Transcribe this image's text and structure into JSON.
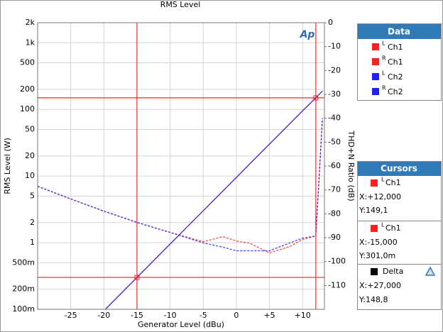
{
  "chart_data": {
    "type": "line",
    "title": "RMS Level",
    "logo": "Ap",
    "x_label": "Generator Level (dBu)",
    "y_label": "RMS Level (W)",
    "y2_label": "THD+N Ratio (dB)",
    "xlim": [
      -30,
      13.3
    ],
    "ylim": [
      0.1,
      2000
    ],
    "y2lim": [
      -120,
      0
    ],
    "log_y": true,
    "grid": true,
    "xticks": [
      {
        "value": -25,
        "label": "-25"
      },
      {
        "value": -20,
        "label": "-20"
      },
      {
        "value": -15,
        "label": "-15"
      },
      {
        "value": -10,
        "label": "-10"
      },
      {
        "value": -5,
        "label": "-5"
      },
      0,
      {
        "value": 5,
        "label": "+5"
      },
      {
        "value": 10,
        "label": "+10"
      }
    ],
    "yticks": [
      {
        "value": 0.1,
        "label": "100m"
      },
      {
        "value": 0.2,
        "label": "200m"
      },
      {
        "value": 0.5,
        "label": "500m"
      },
      1,
      2,
      5,
      10,
      20,
      50,
      100,
      200,
      500,
      {
        "value": 1000,
        "label": "1k"
      },
      {
        "value": 2000,
        "label": "2k"
      }
    ],
    "y2ticks": [
      0,
      -10,
      -20,
      -30,
      -40,
      -50,
      -60,
      -70,
      -80,
      -90,
      -100,
      -110
    ],
    "x": [
      -30,
      -25,
      -20,
      -15,
      -10,
      -5,
      -2,
      0,
      2,
      5,
      8,
      10,
      12,
      13
    ],
    "series": [
      {
        "name": "Ch1",
        "channel": "L",
        "color": "#ff2020",
        "values": [
          null,
          null,
          0.095,
          0.301,
          0.952,
          3.01,
          6.0,
          9.52,
          15.1,
          30.1,
          60.0,
          95.2,
          149.1,
          189
        ],
        "thd_values": [
          -68.5,
          -73.8,
          -78.9,
          -83.6,
          -87.8,
          -91.7,
          -89.6,
          -91.4,
          -92.3,
          -96.4,
          -93.8,
          -90.8,
          -89.3,
          -40
        ]
      },
      {
        "name": "Ch1",
        "channel": "R",
        "color": "#ff2020",
        "values": [
          null,
          null,
          0.095,
          0.301,
          0.952,
          3.01,
          6.0,
          9.52,
          15.1,
          30.1,
          60.0,
          95.2,
          149.1,
          189
        ],
        "thd_values": [
          -68.5,
          -73.8,
          -78.9,
          -83.6,
          -87.8,
          -91.7,
          -89.6,
          -91.4,
          -92.3,
          -96.4,
          -93.8,
          -90.8,
          -89.3,
          -40
        ]
      },
      {
        "name": "Ch2",
        "channel": "L",
        "color": "#2020ff",
        "values": [
          null,
          null,
          0.095,
          0.301,
          0.952,
          3.01,
          6.0,
          9.52,
          15.1,
          30.1,
          60.0,
          95.2,
          149.1,
          189
        ],
        "thd_values": [
          -68.5,
          -73.8,
          -78.9,
          -83.6,
          -87.8,
          -92.2,
          -94.0,
          -95.5,
          -95.5,
          -95.5,
          -92.3,
          -90.2,
          -89.3,
          -40
        ]
      },
      {
        "name": "Ch2",
        "channel": "R",
        "color": "#2020ff",
        "values": [
          null,
          null,
          0.095,
          0.301,
          0.952,
          3.01,
          6.0,
          9.52,
          15.1,
          30.1,
          60.0,
          95.2,
          149.1,
          189
        ],
        "thd_values": [
          -68.5,
          -73.8,
          -78.9,
          -83.6,
          -87.8,
          -92.2,
          -94.0,
          -95.5,
          -95.5,
          -95.5,
          -92.3,
          -90.2,
          -89.3,
          -40
        ]
      }
    ],
    "legend_title": "Data",
    "cursors_title": "Cursors",
    "cursors": [
      {
        "channel": "L",
        "name": "Ch1",
        "color": "#ff2020",
        "x": 12,
        "y": 149.1,
        "x_label": "X:+12,000",
        "y_label": "Y:149,1"
      },
      {
        "channel": "L",
        "name": "Ch1",
        "color": "#ff2020",
        "x": -15,
        "y": 0.301,
        "x_label": "X:-15,000",
        "y_label": "Y:301,0m"
      }
    ],
    "delta": {
      "name": "Delta",
      "x_label": "X:+27,000",
      "y_label": "Y:148,8"
    }
  }
}
